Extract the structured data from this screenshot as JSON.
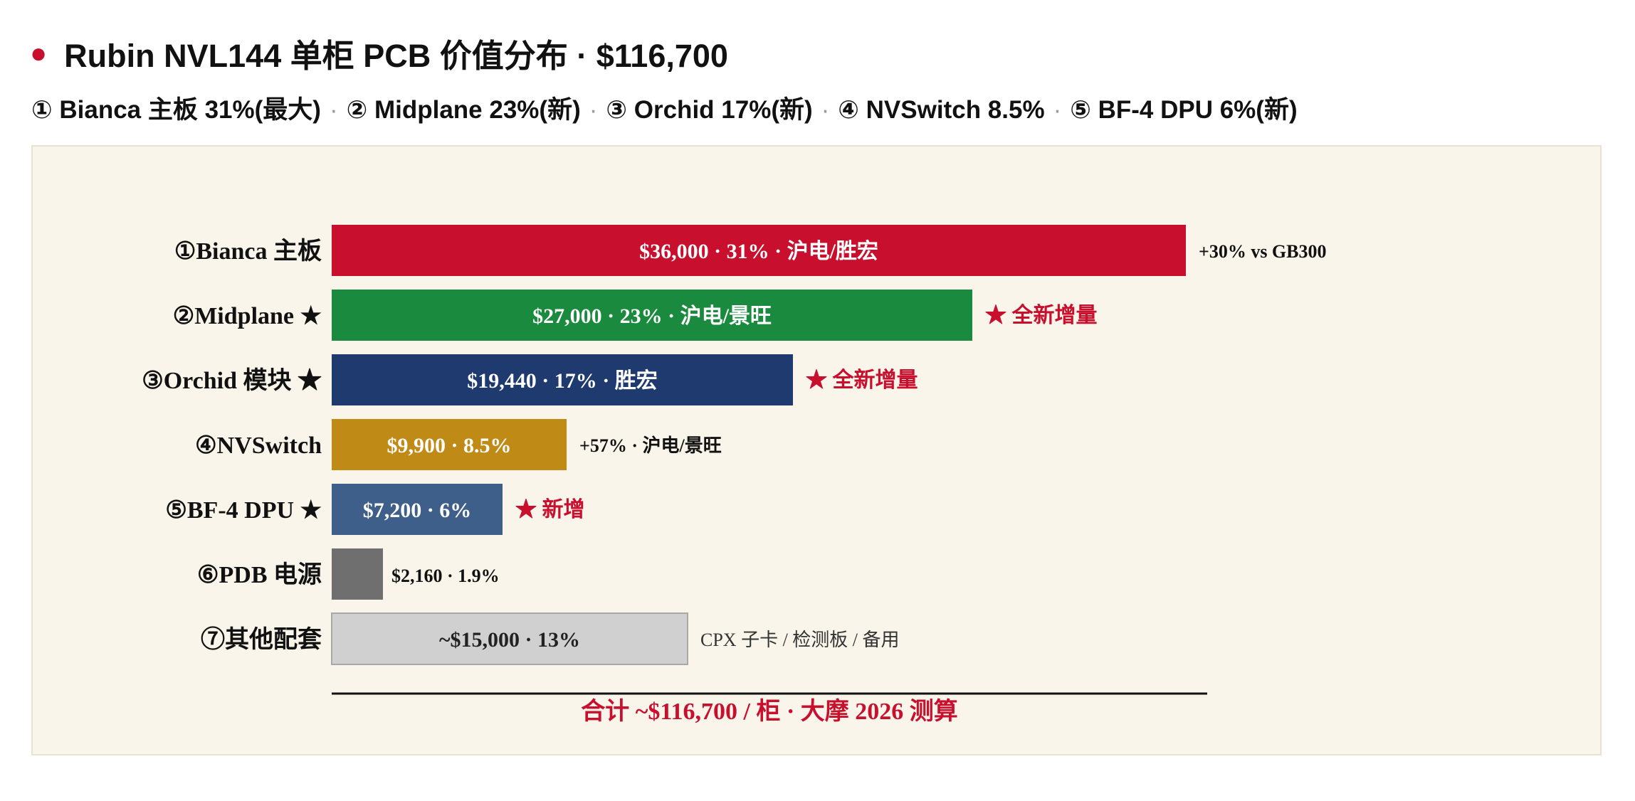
{
  "header": {
    "title": "Rubin NVL144 单柜 PCB 价值分布 · $116,700",
    "subtitle_items": [
      "① Bianca 主板 31%(最大)",
      "② Midplane 23%(新)",
      "③ Orchid 17%(新)",
      "④ NVSwitch 8.5%",
      "⑤ BF-4 DPU 6%(新)"
    ],
    "separator": "·"
  },
  "chart_data": {
    "type": "bar",
    "orientation": "horizontal",
    "unit": "USD",
    "categories": [
      "①Bianca 主板",
      "②Midplane ★",
      "③Orchid 模块 ★",
      "④NVSwitch",
      "⑤BF-4 DPU ★",
      "⑥PDB 电源",
      "⑦其他配套"
    ],
    "values": [
      36000,
      27000,
      19440,
      9900,
      7200,
      2160,
      15000
    ],
    "bar_labels": [
      "$36,000 · 31% · 沪电/胜宏",
      "$27,000 · 23% · 沪电/景旺",
      "$19,440 · 17% · 胜宏",
      "$9,900 · 8.5%",
      "$7,200 · 6%",
      "$2,160 · 1.9%",
      "~$15,000 · 13%"
    ],
    "annotations": [
      "+30% vs GB300",
      "★ 全新增量",
      "★ 全新增量",
      "+57% · 沪电/景旺",
      "★ 新增",
      "",
      "CPX 子卡 / 检测板 / 备用"
    ],
    "colors": [
      "#c8102e",
      "#1a8a3e",
      "#1e3a6e",
      "#c08a16",
      "#3e5f8a",
      "#6f6f6f",
      "#d0d0d0"
    ],
    "label_colors": [
      "#ffffff",
      "#ffffff",
      "#ffffff",
      "#ffffff",
      "#ffffff",
      "#111111",
      "#222222"
    ],
    "annotation_colors": [
      "#111111",
      "#c8102e",
      "#c8102e",
      "#111111",
      "#c8102e",
      "#111111",
      "#333333"
    ],
    "label_inside": [
      true,
      true,
      true,
      true,
      true,
      false,
      true
    ],
    "total_label": "合计 ~$116,700 / 柜 · 大摩 2026 测算",
    "accent_color": "#c8102e",
    "grid": false,
    "xlim": [
      0,
      36000
    ]
  }
}
